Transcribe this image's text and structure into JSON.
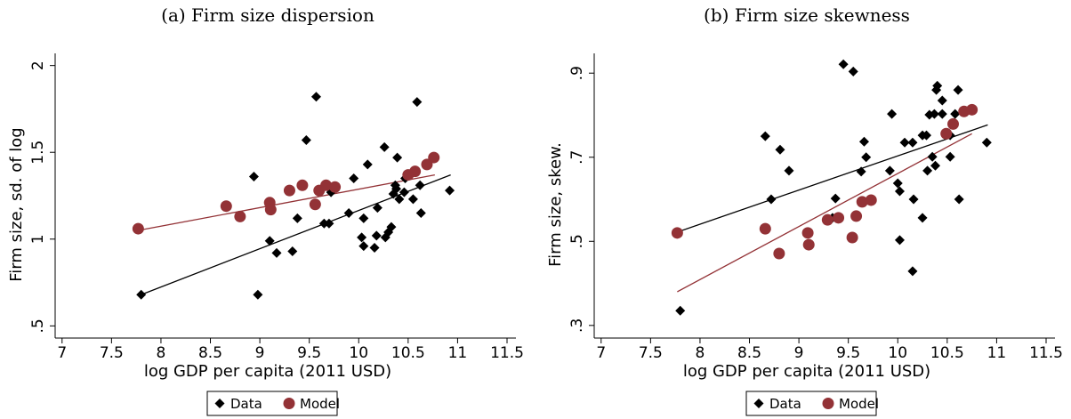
{
  "chart_data": [
    {
      "type": "scatter",
      "title": "(a) Firm size dispersion",
      "xlabel": "log GDP per capita (2011 USD)",
      "ylabel": "Firm size, sd. of log",
      "xlim": [
        6.93,
        11.59
      ],
      "ylim": [
        0.43,
        2.07
      ],
      "xticks": [
        7,
        7.5,
        8,
        8.5,
        9,
        9.5,
        10,
        10.5,
        11,
        11.5
      ],
      "yticks": [
        {
          "value": 0.5,
          "label": ".5"
        },
        1,
        1.5,
        2
      ],
      "grid": false,
      "legend": "bottom",
      "series": [
        {
          "name": "Data",
          "color": "#000000",
          "marker": "diamond",
          "x": [
            7.8,
            8.98,
            8.94,
            9.1,
            9.17,
            9.33,
            9.38,
            9.47,
            9.57,
            9.65,
            9.7,
            9.72,
            9.95,
            9.9,
            10.03,
            10.05,
            10.05,
            10.09,
            10.16,
            10.18,
            10.19,
            10.26,
            10.27,
            10.3,
            10.33,
            10.35,
            10.37,
            10.39,
            10.41,
            10.38,
            10.46,
            10.47,
            10.55,
            10.59,
            10.63,
            10.62,
            10.92
          ],
          "values": [
            0.68,
            0.68,
            1.36,
            0.99,
            0.92,
            0.93,
            1.12,
            1.57,
            1.82,
            1.09,
            1.09,
            1.27,
            1.35,
            1.15,
            1.01,
            0.96,
            1.12,
            1.43,
            0.95,
            1.02,
            1.18,
            1.53,
            1.01,
            1.04,
            1.07,
            1.26,
            1.31,
            1.47,
            1.23,
            1.29,
            1.27,
            1.35,
            1.23,
            1.79,
            1.15,
            1.31,
            1.28
          ],
          "fit": {
            "x": [
              7.8,
              10.93
            ],
            "y": [
              0.68,
              1.37
            ]
          }
        },
        {
          "name": "Model",
          "color": "#933236",
          "marker": "circle",
          "x": [
            7.77,
            8.66,
            8.8,
            9.1,
            9.11,
            9.3,
            9.43,
            9.56,
            9.6,
            9.67,
            9.76,
            10.5,
            10.57,
            10.69,
            10.76
          ],
          "values": [
            1.06,
            1.19,
            1.13,
            1.21,
            1.17,
            1.28,
            1.31,
            1.2,
            1.28,
            1.31,
            1.3,
            1.37,
            1.39,
            1.43,
            1.47
          ],
          "fit": {
            "x": [
              7.77,
              10.77
            ],
            "y": [
              1.05,
              1.37
            ]
          }
        }
      ]
    },
    {
      "type": "scatter",
      "title": "(b) Firm size skewness",
      "xlabel": "log GDP per capita (2011 USD)",
      "ylabel": "Firm size, skew.",
      "xlim": [
        6.93,
        11.59
      ],
      "ylim": [
        0.27,
        0.947
      ],
      "xticks": [
        7,
        7.5,
        8,
        8.5,
        9,
        9.5,
        10,
        10.5,
        11,
        11.5
      ],
      "yticks": [
        {
          "value": 0.3,
          "label": ".3"
        },
        {
          "value": 0.5,
          "label": ".5"
        },
        {
          "value": 0.7,
          "label": ".7"
        },
        {
          "value": 0.9,
          "label": ".9"
        }
      ],
      "grid": false,
      "legend": "bottom",
      "series": [
        {
          "name": "Data",
          "color": "#000000",
          "marker": "diamond",
          "x": [
            7.8,
            8.66,
            8.72,
            8.81,
            8.9,
            9.37,
            9.45,
            9.55,
            9.34,
            9.66,
            9.63,
            9.68,
            9.94,
            9.92,
            10.0,
            10.02,
            10.02,
            10.07,
            10.15,
            10.16,
            10.15,
            10.25,
            10.29,
            10.25,
            10.3,
            10.32,
            10.35,
            10.37,
            10.38,
            10.39,
            10.4,
            10.45,
            10.45,
            10.53,
            10.53,
            10.58,
            10.61,
            10.62,
            10.9
          ],
          "values": [
            0.335,
            0.75,
            0.6,
            0.718,
            0.668,
            0.602,
            0.921,
            0.904,
            0.556,
            0.737,
            0.666,
            0.7,
            0.803,
            0.668,
            0.638,
            0.619,
            0.503,
            0.735,
            0.735,
            0.6,
            0.429,
            0.752,
            0.752,
            0.556,
            0.668,
            0.801,
            0.701,
            0.803,
            0.68,
            0.86,
            0.87,
            0.835,
            0.803,
            0.752,
            0.701,
            0.803,
            0.86,
            0.6,
            0.735
          ],
          "fit": {
            "x": [
              7.77,
              10.91
            ],
            "y": [
              0.522,
              0.777
            ]
          }
        },
        {
          "name": "Model",
          "color": "#933236",
          "marker": "circle",
          "x": [
            7.77,
            8.66,
            8.8,
            9.09,
            9.1,
            9.29,
            9.4,
            9.58,
            9.54,
            9.64,
            9.73,
            10.49,
            10.56,
            10.67,
            10.75
          ],
          "values": [
            0.52,
            0.53,
            0.471,
            0.52,
            0.492,
            0.551,
            0.556,
            0.56,
            0.509,
            0.594,
            0.598,
            0.756,
            0.779,
            0.809,
            0.813
          ],
          "fit": {
            "x": [
              7.77,
              10.75
            ],
            "y": [
              0.38,
              0.756
            ]
          }
        }
      ]
    }
  ]
}
